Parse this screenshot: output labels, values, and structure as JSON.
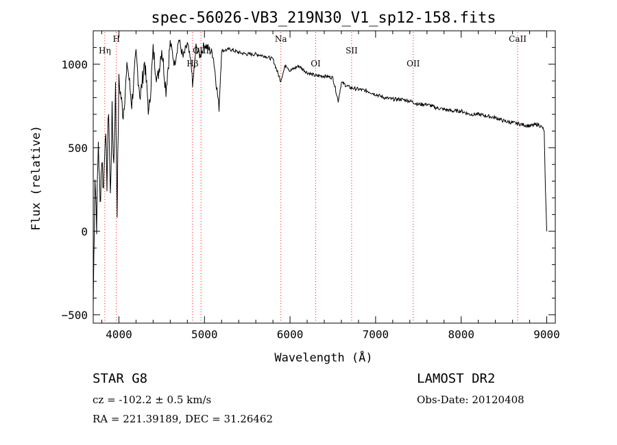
{
  "chart_data": {
    "type": "line",
    "title": "spec-56026-VB3_219N30_V1_sp12-158.fits",
    "xlabel": "Wavelength (Å)",
    "ylabel": "Flux (relative)",
    "xlim": [
      3700,
      9100
    ],
    "ylim": [
      -550,
      1200
    ],
    "x_ticks": [
      4000,
      5000,
      6000,
      7000,
      8000,
      9000
    ],
    "y_ticks": [
      -500,
      0,
      500,
      1000
    ],
    "grid": false,
    "line_color": "#000000",
    "marker_color": "#ff0000",
    "spectral_lines": [
      {
        "label": "Hη",
        "x": 3835
      },
      {
        "label": "H",
        "x": 3970
      },
      {
        "label": "Hβ",
        "x": 4861
      },
      {
        "label": "OIII",
        "x": 4959
      },
      {
        "label": "Na",
        "x": 5893
      },
      {
        "label": "OI",
        "x": 6300
      },
      {
        "label": "SII",
        "x": 6720
      },
      {
        "label": "OII",
        "x": 7440
      },
      {
        "label": "CaII",
        "x": 8660
      }
    ],
    "series": [
      {
        "x": [
          3700,
          3720,
          3740,
          3760,
          3780,
          3800,
          3820,
          3840,
          3860,
          3880,
          3900,
          3920,
          3940,
          3960,
          3980,
          4000,
          4050,
          4100,
          4150,
          4200,
          4250,
          4300,
          4350,
          4400,
          4450,
          4500,
          4550,
          4600,
          4650,
          4700,
          4750,
          4800,
          4850,
          4861,
          4900,
          4950,
          5000,
          5100,
          5170,
          5200,
          5300,
          5400,
          5500,
          5600,
          5700,
          5800,
          5890,
          5950,
          6000,
          6100,
          6200,
          6300,
          6400,
          6500,
          6563,
          6600,
          6700,
          6800,
          6900,
          7000,
          7100,
          7200,
          7300,
          7400,
          7500,
          7600,
          7700,
          7800,
          7900,
          8000,
          8100,
          8200,
          8300,
          8400,
          8500,
          8600,
          8700,
          8800,
          8900,
          8950,
          8970,
          8985,
          9000
        ],
        "y": [
          -450,
          350,
          50,
          550,
          150,
          450,
          250,
          620,
          300,
          750,
          200,
          700,
          400,
          850,
          150,
          900,
          700,
          1000,
          760,
          1050,
          800,
          1020,
          700,
          1080,
          900,
          1100,
          850,
          1130,
          1000,
          1150,
          1040,
          1120,
          980,
          860,
          1100,
          1050,
          1120,
          1060,
          740,
          1080,
          1090,
          1070,
          1060,
          1060,
          1050,
          1030,
          900,
          1000,
          960,
          990,
          950,
          930,
          930,
          920,
          780,
          890,
          860,
          850,
          840,
          820,
          800,
          790,
          790,
          780,
          760,
          760,
          740,
          730,
          720,
          720,
          700,
          700,
          690,
          680,
          660,
          650,
          640,
          630,
          640,
          620,
          600,
          250,
          0
        ]
      }
    ]
  },
  "info": {
    "object": "STAR    G8",
    "redshift": "cz = -102.2 ± 0.5 km/s",
    "coords": "RA = 221.39189, DEC =  31.26462",
    "survey": "LAMOST DR2",
    "obs_date": "Obs-Date: 20120408"
  }
}
